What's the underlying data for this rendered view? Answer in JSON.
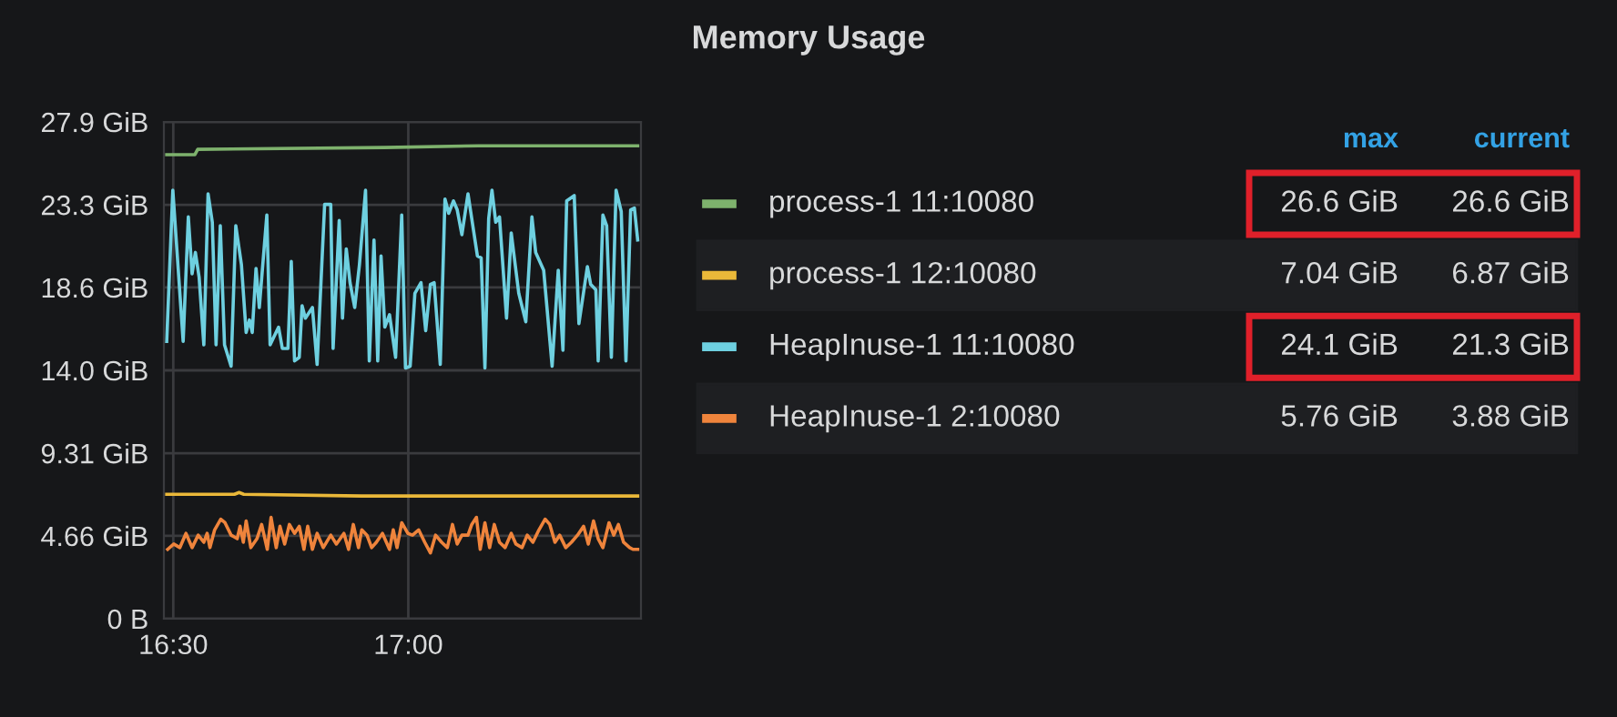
{
  "chart_data": {
    "type": "line",
    "title": "Memory Usage",
    "xlim": [
      16.48,
      17.495
    ],
    "xticks": [
      {
        "value": 16.5,
        "label": "16:30"
      },
      {
        "value": 17.0,
        "label": "17:00"
      }
    ],
    "ylim": [
      0,
      27.94
    ],
    "yticks": [
      {
        "value": 0,
        "label": "0 B"
      },
      {
        "value": 4.66,
        "label": "4.66 GiB"
      },
      {
        "value": 9.31,
        "label": "9.31 GiB"
      },
      {
        "value": 13.97,
        "label": "14.0 GiB"
      },
      {
        "value": 18.63,
        "label": "18.6 GiB"
      },
      {
        "value": 23.28,
        "label": "23.3 GiB"
      },
      {
        "value": 27.94,
        "label": "27.9 GiB"
      }
    ],
    "grid": true,
    "legend": "right",
    "annotations": [
      "max",
      "current",
      "26.6 GiB",
      "26.6 GiB",
      "7.04 GiB",
      "6.87 GiB",
      "24.1 GiB",
      "21.3 GiB",
      "5.76 GiB",
      "3.88 GiB"
    ],
    "series": [
      {
        "name": "process-1 11:10080",
        "color": "#7eb26d",
        "x": [
          16.486,
          16.546,
          16.552,
          16.95,
          17.15,
          17.488
        ],
        "values": [
          26.1,
          26.1,
          26.4,
          26.5,
          26.6,
          26.6
        ]
      },
      {
        "name": "process-1 12:10080",
        "color": "#eab839",
        "x": [
          16.486,
          16.63,
          16.64,
          16.65,
          16.9,
          17.488
        ],
        "values": [
          7.0,
          7.0,
          7.1,
          7.0,
          6.9,
          6.9
        ]
      },
      {
        "name": "HeapInuse-1 11:10080",
        "color": "#6ed0e0",
        "x": [
          16.486,
          16.499,
          16.521,
          16.532,
          16.54,
          16.547,
          16.555,
          16.565,
          16.574,
          16.583,
          16.591,
          16.6,
          16.609,
          16.623,
          16.633,
          16.645,
          16.655,
          16.662,
          16.668,
          16.676,
          16.683,
          16.699,
          16.706,
          16.724,
          16.732,
          16.744,
          16.751,
          16.758,
          16.768,
          16.774,
          16.781,
          16.796,
          16.806,
          16.822,
          16.835,
          16.84,
          16.853,
          16.86,
          16.868,
          16.876,
          16.886,
          16.896,
          16.909,
          16.917,
          16.927,
          16.935,
          16.942,
          16.95,
          16.96,
          16.973,
          16.986,
          16.994,
          17.004,
          17.014,
          17.027,
          17.037,
          17.047,
          17.055,
          17.068,
          17.078,
          17.086,
          17.096,
          17.104,
          17.114,
          17.127,
          17.147,
          17.155,
          17.163,
          17.171,
          17.178,
          17.186,
          17.194,
          17.209,
          17.219,
          17.235,
          17.25,
          17.263,
          17.271,
          17.288,
          17.306,
          17.319,
          17.329,
          17.337,
          17.353,
          17.363,
          17.381,
          17.388,
          17.399,
          17.404,
          17.414,
          17.422,
          17.432,
          17.442,
          17.453,
          17.463,
          17.473,
          17.481,
          17.488
        ],
        "values": [
          15.6,
          24.1,
          15.6,
          22.6,
          19.4,
          20.6,
          19.2,
          15.4,
          23.9,
          22.3,
          15.4,
          22.1,
          15.4,
          14.2,
          22.1,
          19.9,
          16.1,
          16.8,
          16.1,
          19.7,
          17.5,
          22.7,
          15.4,
          16.4,
          15.2,
          15.2,
          20.1,
          14.5,
          14.7,
          17.6,
          16.9,
          17.5,
          14.3,
          23.3,
          23.3,
          15.2,
          22.4,
          16.9,
          20.8,
          18.9,
          17.5,
          19.9,
          24.1,
          14.5,
          21.3,
          14.5,
          20.4,
          16.4,
          17.1,
          14.7,
          22.7,
          14.1,
          14.2,
          18.3,
          18.9,
          16.2,
          18.8,
          18.9,
          14.3,
          23.6,
          22.8,
          23.5,
          23.0,
          21.6,
          23.9,
          20.4,
          20.3,
          14.1,
          22.5,
          24.1,
          22.3,
          22.6,
          16.9,
          21.7,
          18.3,
          16.7,
          22.6,
          20.6,
          19.6,
          14.2,
          19.6,
          15.1,
          23.5,
          23.8,
          16.6,
          19.8,
          18.8,
          18.5,
          14.5,
          22.7,
          22.1,
          14.7,
          24.1,
          22.9,
          14.5,
          23.0,
          23.1,
          21.3
        ]
      },
      {
        "name": "HeapInuse-1 2:10080",
        "color": "#ef843c",
        "x": [
          16.488,
          16.501,
          16.514,
          16.527,
          16.54,
          16.553,
          16.565,
          16.572,
          16.578,
          16.588,
          16.601,
          16.61,
          16.623,
          16.636,
          16.642,
          16.649,
          16.655,
          16.665,
          16.678,
          16.688,
          16.7,
          16.708,
          16.719,
          16.727,
          16.737,
          16.747,
          16.758,
          16.768,
          16.778,
          16.786,
          16.796,
          16.806,
          16.819,
          16.835,
          16.847,
          16.863,
          16.873,
          16.883,
          16.894,
          16.901,
          16.912,
          16.922,
          16.932,
          16.945,
          16.96,
          16.968,
          16.976,
          16.986,
          16.999,
          17.009,
          17.022,
          17.035,
          17.047,
          17.058,
          17.071,
          17.083,
          17.094,
          17.104,
          17.114,
          17.127,
          17.135,
          17.145,
          17.153,
          17.163,
          17.173,
          17.183,
          17.194,
          17.206,
          17.219,
          17.229,
          17.242,
          17.253,
          17.265,
          17.278,
          17.291,
          17.301,
          17.312,
          17.322,
          17.335,
          17.347,
          17.36,
          17.373,
          17.383,
          17.394,
          17.404,
          17.414,
          17.427,
          17.437,
          17.447,
          17.458,
          17.471,
          17.478,
          17.488
        ],
        "values": [
          3.9,
          4.2,
          4.0,
          4.8,
          4.0,
          4.7,
          4.3,
          4.8,
          4.0,
          5.0,
          5.6,
          5.4,
          4.7,
          4.5,
          5.2,
          4.3,
          5.5,
          4.0,
          4.5,
          5.3,
          3.9,
          5.7,
          4.0,
          5.2,
          4.2,
          5.3,
          4.8,
          5.2,
          3.9,
          5.2,
          3.9,
          4.8,
          4.0,
          4.7,
          4.2,
          4.8,
          3.9,
          5.3,
          4.0,
          5.0,
          4.7,
          4.0,
          4.3,
          4.8,
          3.9,
          5.0,
          4.0,
          5.4,
          4.8,
          4.7,
          5.0,
          4.3,
          3.7,
          4.7,
          4.3,
          4.0,
          5.3,
          4.2,
          4.7,
          4.7,
          5.3,
          5.7,
          3.9,
          5.4,
          4.0,
          5.3,
          4.3,
          4.0,
          4.8,
          4.2,
          4.0,
          4.7,
          4.3,
          5.0,
          5.6,
          5.3,
          4.3,
          4.7,
          4.0,
          4.3,
          4.7,
          5.2,
          4.2,
          5.5,
          4.5,
          4.0,
          5.4,
          4.7,
          5.3,
          4.3,
          4.0,
          3.9,
          3.9
        ]
      }
    ]
  }
}
